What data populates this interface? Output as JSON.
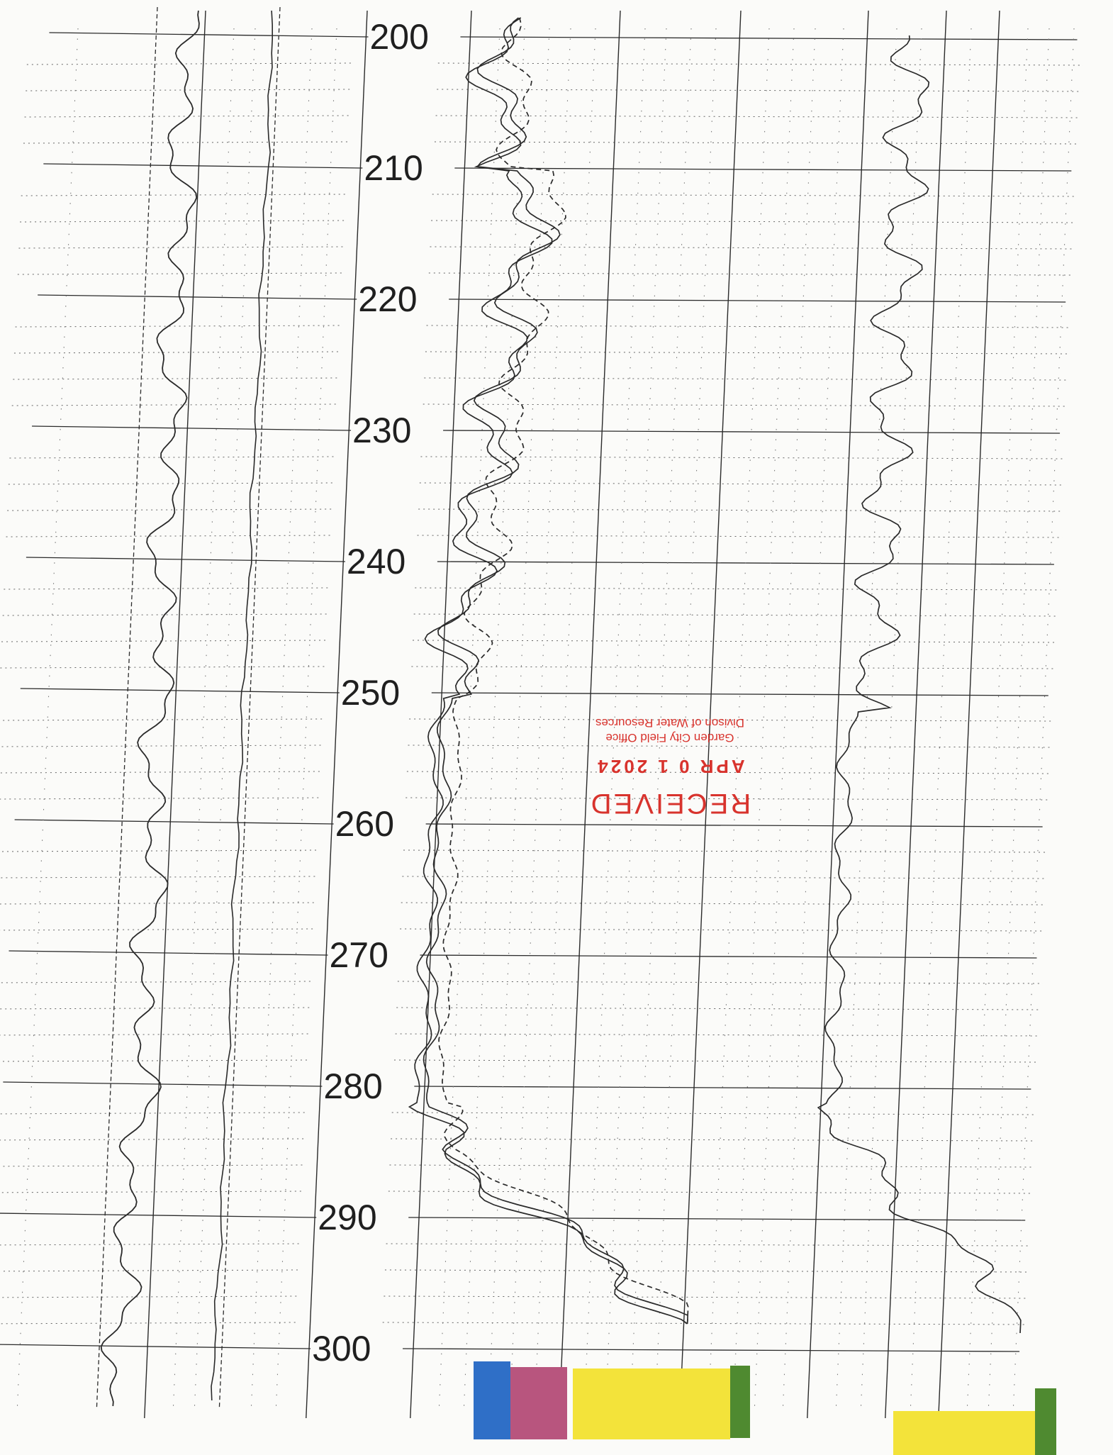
{
  "depth_scale": {
    "labels": [
      "200",
      "210",
      "220",
      "230",
      "240",
      "250",
      "260",
      "270",
      "280",
      "290",
      "300"
    ]
  },
  "stamp": {
    "title": "RECEIVED",
    "date": "APR 0 1 2024",
    "office": "Garden City Field Office",
    "division": "Divison of Water Resources"
  },
  "colors": {
    "grid": "#2b2b2b",
    "curve": "#2a2a2a",
    "stamp": "#d8332d",
    "blue": "#2f6fc7",
    "magenta": "#b8557e",
    "yellow": "#f3e33a",
    "green": "#4f8a30"
  }
}
